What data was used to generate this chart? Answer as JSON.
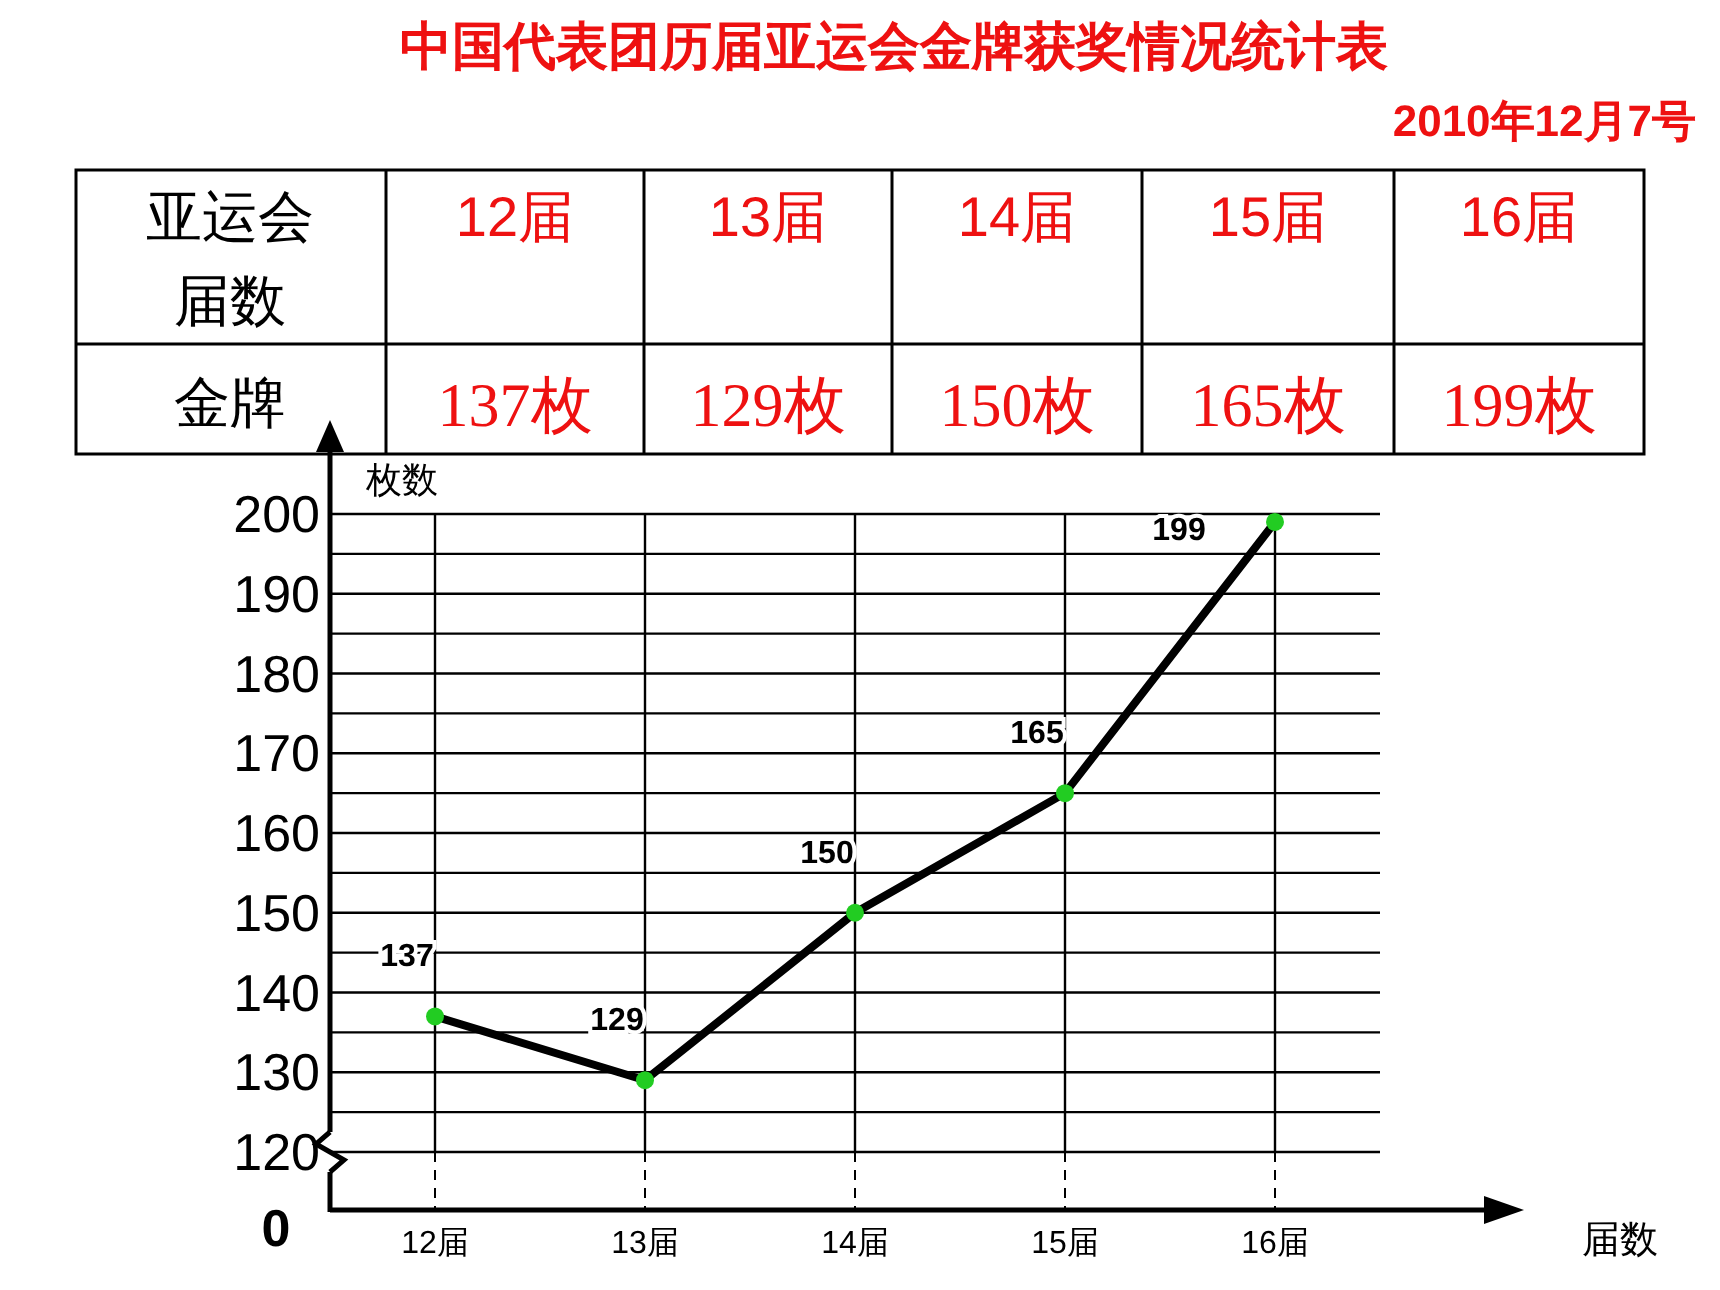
{
  "chart_data": {
    "type": "line",
    "title": "中国代表团历届亚运会金牌获奖情况统计表",
    "subtitle": "2010年12月7号",
    "ylabel": "枚数",
    "annotations": [
      "亚运会届数",
      "金牌",
      "137枚",
      "129枚",
      "150枚",
      "165枚",
      "199枚",
      "0",
      "届数"
    ],
    "categories": [
      "12届",
      "13届",
      "14届",
      "15届",
      "16届"
    ],
    "series": [
      {
        "color": "#000000",
        "colors": [
          "#22cc22",
          "#22cc22",
          "#22cc22",
          "#22cc22",
          "#22cc22"
        ],
        "values": [
          137,
          129,
          150,
          165,
          199
        ]
      }
    ],
    "ylim": [
      120,
      200
    ],
    "yticks": [
      120,
      {
        "value": 125,
        "label": null
      },
      130,
      {
        "value": 135,
        "label": null
      },
      140,
      {
        "value": 145,
        "label": null
      },
      150,
      {
        "value": 155,
        "label": null
      },
      160,
      {
        "value": 165,
        "label": null
      },
      170,
      {
        "value": 175,
        "label": null
      },
      180,
      {
        "value": 185,
        "label": null
      },
      190,
      {
        "value": 195,
        "label": null
      },
      200
    ],
    "grid": true,
    "marker": "circle",
    "line_style": "solid",
    "data_labels": true
  }
}
